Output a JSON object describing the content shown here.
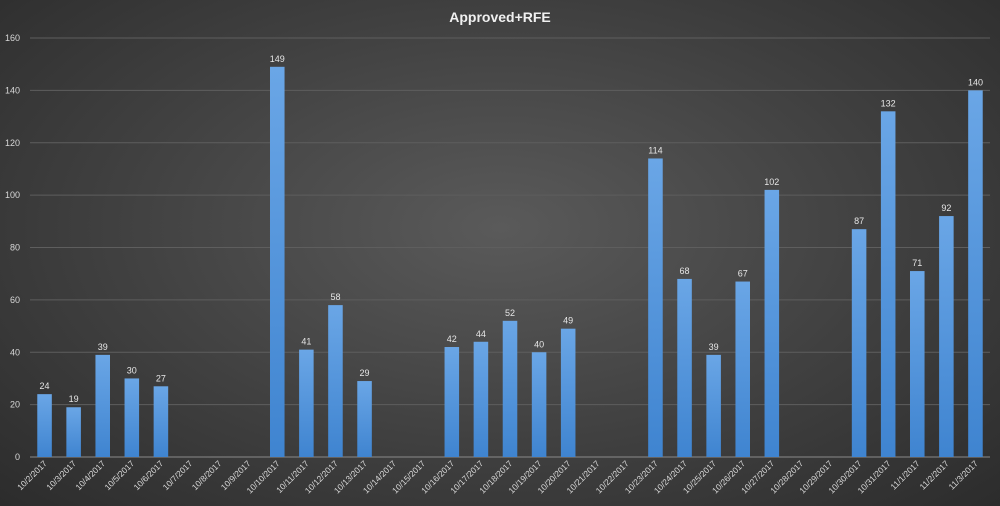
{
  "chart_data": {
    "type": "bar",
    "title": "Approved+RFE",
    "xlabel": "",
    "ylabel": "",
    "ylim": [
      0,
      160
    ],
    "yticks": [
      0,
      20,
      40,
      60,
      80,
      100,
      120,
      140,
      160
    ],
    "grid": true,
    "bar_color": "#4a90d9",
    "categories": [
      "10/2/2017",
      "10/3/2017",
      "10/4/2017",
      "10/5/2017",
      "10/6/2017",
      "10/7/2017",
      "10/8/2017",
      "10/9/2017",
      "10/10/2017",
      "10/11/2017",
      "10/12/2017",
      "10/13/2017",
      "10/14/2017",
      "10/15/2017",
      "10/16/2017",
      "10/17/2017",
      "10/18/2017",
      "10/19/2017",
      "10/20/2017",
      "10/21/2017",
      "10/22/2017",
      "10/23/2017",
      "10/24/2017",
      "10/25/2017",
      "10/26/2017",
      "10/27/2017",
      "10/28/2017",
      "10/29/2017",
      "10/30/2017",
      "10/31/2017",
      "11/1/2017",
      "11/2/2017",
      "11/3/2017"
    ],
    "values": [
      24,
      19,
      39,
      30,
      27,
      null,
      null,
      null,
      149,
      41,
      58,
      29,
      null,
      null,
      42,
      44,
      52,
      40,
      49,
      null,
      null,
      114,
      68,
      39,
      67,
      102,
      null,
      null,
      87,
      132,
      71,
      92,
      140
    ]
  }
}
